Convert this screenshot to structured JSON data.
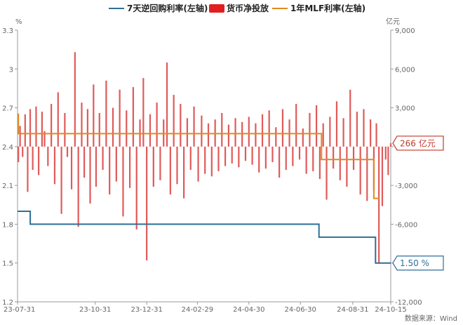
{
  "chart_data": {
    "type": "bar+line",
    "legend": [
      {
        "name": "7天逆回购利率(左轴)",
        "kind": "line",
        "color": "#2e6f97"
      },
      {
        "name": "货币净投放",
        "kind": "bar",
        "color": "#e02020"
      },
      {
        "name": "1年MLF利率(左轴)",
        "kind": "line",
        "color": "#e08a1e"
      }
    ],
    "left_axis": {
      "unit": "%",
      "ticks": [
        "1.2",
        "1.5",
        "1.8",
        "2.1",
        "2.4",
        "2.7",
        "3",
        "3.3"
      ],
      "ylim": [
        1.2,
        3.3
      ]
    },
    "right_axis": {
      "unit": "亿元",
      "ticks": [
        "-12,000",
        "-9,000",
        "-6,000",
        "-3,000",
        "0",
        "3,000",
        "6,000",
        "9,000"
      ],
      "ylim": [
        -12000,
        9000
      ]
    },
    "x_ticks": [
      "23-07-31",
      "23-10-31",
      "23-12-31",
      "24-02-29",
      "24-04-30",
      "24-06-30",
      "24-08-31",
      "24-10-15"
    ],
    "x_range": [
      "2023-07-31",
      "2024-10-15"
    ],
    "series": [
      {
        "name": "7天逆回购利率(左轴)",
        "color": "#2e6f97",
        "steps": [
          {
            "date": "2023-07-31",
            "value": 1.9
          },
          {
            "date": "2023-08-15",
            "value": 1.8
          },
          {
            "date": "2024-07-22",
            "value": 1.7
          },
          {
            "date": "2024-09-27",
            "value": 1.5
          }
        ]
      },
      {
        "name": "1年MLF利率(左轴)",
        "color": "#e08a1e",
        "steps": [
          {
            "date": "2023-07-31",
            "value": 2.65
          },
          {
            "date": "2023-08-01",
            "value": 2.5
          },
          {
            "date": "2024-07-25",
            "value": 2.3
          },
          {
            "date": "2024-09-25",
            "value": 2.0
          }
        ],
        "end": "2024-10-02"
      }
    ],
    "bars": {
      "name": "货币净投放",
      "color": "#e05a5a",
      "dates": [
        "2023-08-01",
        "2023-08-03",
        "2023-08-06",
        "2023-08-09",
        "2023-08-12",
        "2023-08-15",
        "2023-08-18",
        "2023-08-22",
        "2023-08-25",
        "2023-08-29",
        "2023-09-01",
        "2023-09-05",
        "2023-09-09",
        "2023-09-13",
        "2023-09-17",
        "2023-09-21",
        "2023-09-25",
        "2023-09-28",
        "2023-10-03",
        "2023-10-07",
        "2023-10-11",
        "2023-10-15",
        "2023-10-18",
        "2023-10-22",
        "2023-10-25",
        "2023-10-29",
        "2023-11-01",
        "2023-11-05",
        "2023-11-09",
        "2023-11-13",
        "2023-11-17",
        "2023-11-21",
        "2023-11-25",
        "2023-11-29",
        "2023-12-03",
        "2023-12-07",
        "2023-12-11",
        "2023-12-15",
        "2023-12-19",
        "2023-12-23",
        "2023-12-27",
        "2023-12-31",
        "2024-01-04",
        "2024-01-08",
        "2024-01-12",
        "2024-01-16",
        "2024-01-20",
        "2024-01-24",
        "2024-01-28",
        "2024-02-01",
        "2024-02-05",
        "2024-02-09",
        "2024-02-13",
        "2024-02-17",
        "2024-02-21",
        "2024-02-25",
        "2024-03-01",
        "2024-03-05",
        "2024-03-09",
        "2024-03-13",
        "2024-03-17",
        "2024-03-21",
        "2024-03-25",
        "2024-03-29",
        "2024-04-02",
        "2024-04-06",
        "2024-04-10",
        "2024-04-14",
        "2024-04-18",
        "2024-04-22",
        "2024-04-26",
        "2024-04-30",
        "2024-05-04",
        "2024-05-08",
        "2024-05-12",
        "2024-05-16",
        "2024-05-20",
        "2024-05-24",
        "2024-05-28",
        "2024-06-01",
        "2024-06-05",
        "2024-06-09",
        "2024-06-13",
        "2024-06-17",
        "2024-06-21",
        "2024-06-25",
        "2024-06-29",
        "2024-07-03",
        "2024-07-07",
        "2024-07-11",
        "2024-07-15",
        "2024-07-19",
        "2024-07-23",
        "2024-07-27",
        "2024-07-31",
        "2024-08-04",
        "2024-08-08",
        "2024-08-12",
        "2024-08-16",
        "2024-08-20",
        "2024-08-24",
        "2024-08-28",
        "2024-09-01",
        "2024-09-05",
        "2024-09-09",
        "2024-09-13",
        "2024-09-17",
        "2024-09-21",
        "2024-09-25",
        "2024-09-28",
        "2024-10-01",
        "2024-10-05",
        "2024-10-09",
        "2024-10-12",
        "2024-10-15"
      ],
      "values": [
        -1200,
        1600,
        -800,
        2500,
        -3500,
        2900,
        -1800,
        3100,
        -2200,
        2700,
        1200,
        -1500,
        3300,
        -2900,
        4200,
        -5200,
        2600,
        -800,
        -3300,
        7300,
        -6200,
        3400,
        -2400,
        2900,
        -4400,
        4800,
        -3100,
        2600,
        -1800,
        5100,
        -3700,
        3000,
        -2700,
        4400,
        -5400,
        2800,
        -3200,
        4600,
        -6400,
        2100,
        5300,
        -8800,
        2500,
        -3100,
        3400,
        -2600,
        2100,
        6500,
        -3700,
        4000,
        -2900,
        3300,
        -4000,
        2200,
        -1800,
        3100,
        -2700,
        2400,
        -2100,
        1800,
        -2300,
        2100,
        -1900,
        2600,
        -1500,
        1700,
        -1300,
        2200,
        -1600,
        1900,
        -1100,
        2300,
        -1400,
        1800,
        -2000,
        2500,
        -1700,
        2800,
        -1200,
        1500,
        -2400,
        2900,
        -1800,
        2100,
        -1500,
        3300,
        -1000,
        1400,
        -2100,
        2600,
        -1900,
        3200,
        -2500,
        1800,
        -4100,
        2300,
        -1700,
        3500,
        -2600,
        2200,
        -3100,
        4400,
        -1800,
        2700,
        -3700,
        2900,
        -4200,
        2100,
        -3400,
        1800,
        -9000,
        -4600,
        -1000,
        -2200,
        266
      ]
    },
    "annotations": [
      {
        "target": "货币净投放",
        "text": "266 亿元"
      },
      {
        "target": "7天逆回购利率(左轴)",
        "text": "1.50 %"
      }
    ],
    "source": "数据来源：Wind"
  }
}
